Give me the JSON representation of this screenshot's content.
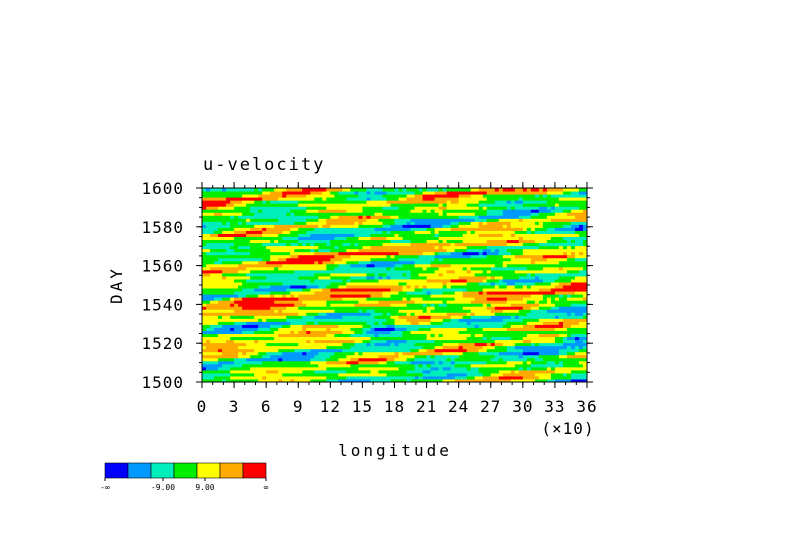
{
  "chart_data": {
    "type": "heatmap",
    "title": "u-velocity",
    "xlabel": "longitude",
    "x_multiplier_label": "(×10)",
    "ylabel": "DAY",
    "xlim": [
      0,
      36
    ],
    "ylim": [
      1500,
      1600
    ],
    "x_ticks": [
      "0",
      "3",
      "6",
      "9",
      "12",
      "15",
      "18",
      "21",
      "24",
      "27",
      "30",
      "33",
      "36"
    ],
    "y_ticks": [
      "1500",
      "1520",
      "1540",
      "1560",
      "1580",
      "1600"
    ],
    "colorbar": {
      "colors": [
        "#0000ff",
        "#0099ff",
        "#00eebb",
        "#00ee00",
        "#ffff00",
        "#ffaa00",
        "#ff0000"
      ],
      "tick_labels": [
        "-∞",
        "-9.00",
        "9.00",
        "∞"
      ]
    },
    "field_description_values": {
      "pattern": "eastward-tilted streaks; red bands near days 1533-1545, 1558-1570, 1585-1595; blue patches near longitudes 150-200 and 330-360"
    }
  }
}
